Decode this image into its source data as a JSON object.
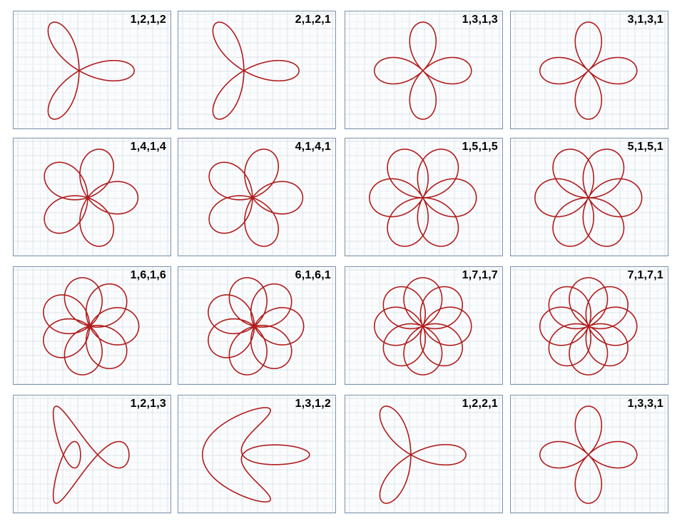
{
  "colors": {
    "curve": "#b01c1c",
    "grid_major": "#dbe3ec",
    "grid_minor": "#eef2f6",
    "border": "#7b93ad"
  },
  "panels": [
    {
      "label": "1,2,1,2",
      "params": [
        1,
        2,
        1,
        2
      ]
    },
    {
      "label": "2,1,2,1",
      "params": [
        2,
        1,
        2,
        1
      ]
    },
    {
      "label": "1,3,1,3",
      "params": [
        1,
        3,
        1,
        3
      ]
    },
    {
      "label": "3,1,3,1",
      "params": [
        3,
        1,
        3,
        1
      ]
    },
    {
      "label": "1,4,1,4",
      "params": [
        1,
        4,
        1,
        4
      ]
    },
    {
      "label": "4,1,4,1",
      "params": [
        4,
        1,
        4,
        1
      ]
    },
    {
      "label": "1,5,1,5",
      "params": [
        1,
        5,
        1,
        5
      ]
    },
    {
      "label": "5,1,5,1",
      "params": [
        5,
        1,
        5,
        1
      ]
    },
    {
      "label": "1,6,1,6",
      "params": [
        1,
        6,
        1,
        6
      ]
    },
    {
      "label": "6,1,6,1",
      "params": [
        6,
        1,
        6,
        1
      ]
    },
    {
      "label": "1,7,1,7",
      "params": [
        1,
        7,
        1,
        7
      ]
    },
    {
      "label": "7,1,7,1",
      "params": [
        7,
        1,
        7,
        1
      ]
    },
    {
      "label": "1,2,1,3",
      "params": [
        1,
        2,
        1,
        3
      ]
    },
    {
      "label": "1,3,1,2",
      "params": [
        1,
        3,
        1,
        2
      ]
    },
    {
      "label": "1,2,2,1",
      "params": [
        1,
        2,
        2,
        1
      ]
    },
    {
      "label": "1,3,3,1",
      "params": [
        1,
        3,
        3,
        1
      ]
    }
  ]
}
